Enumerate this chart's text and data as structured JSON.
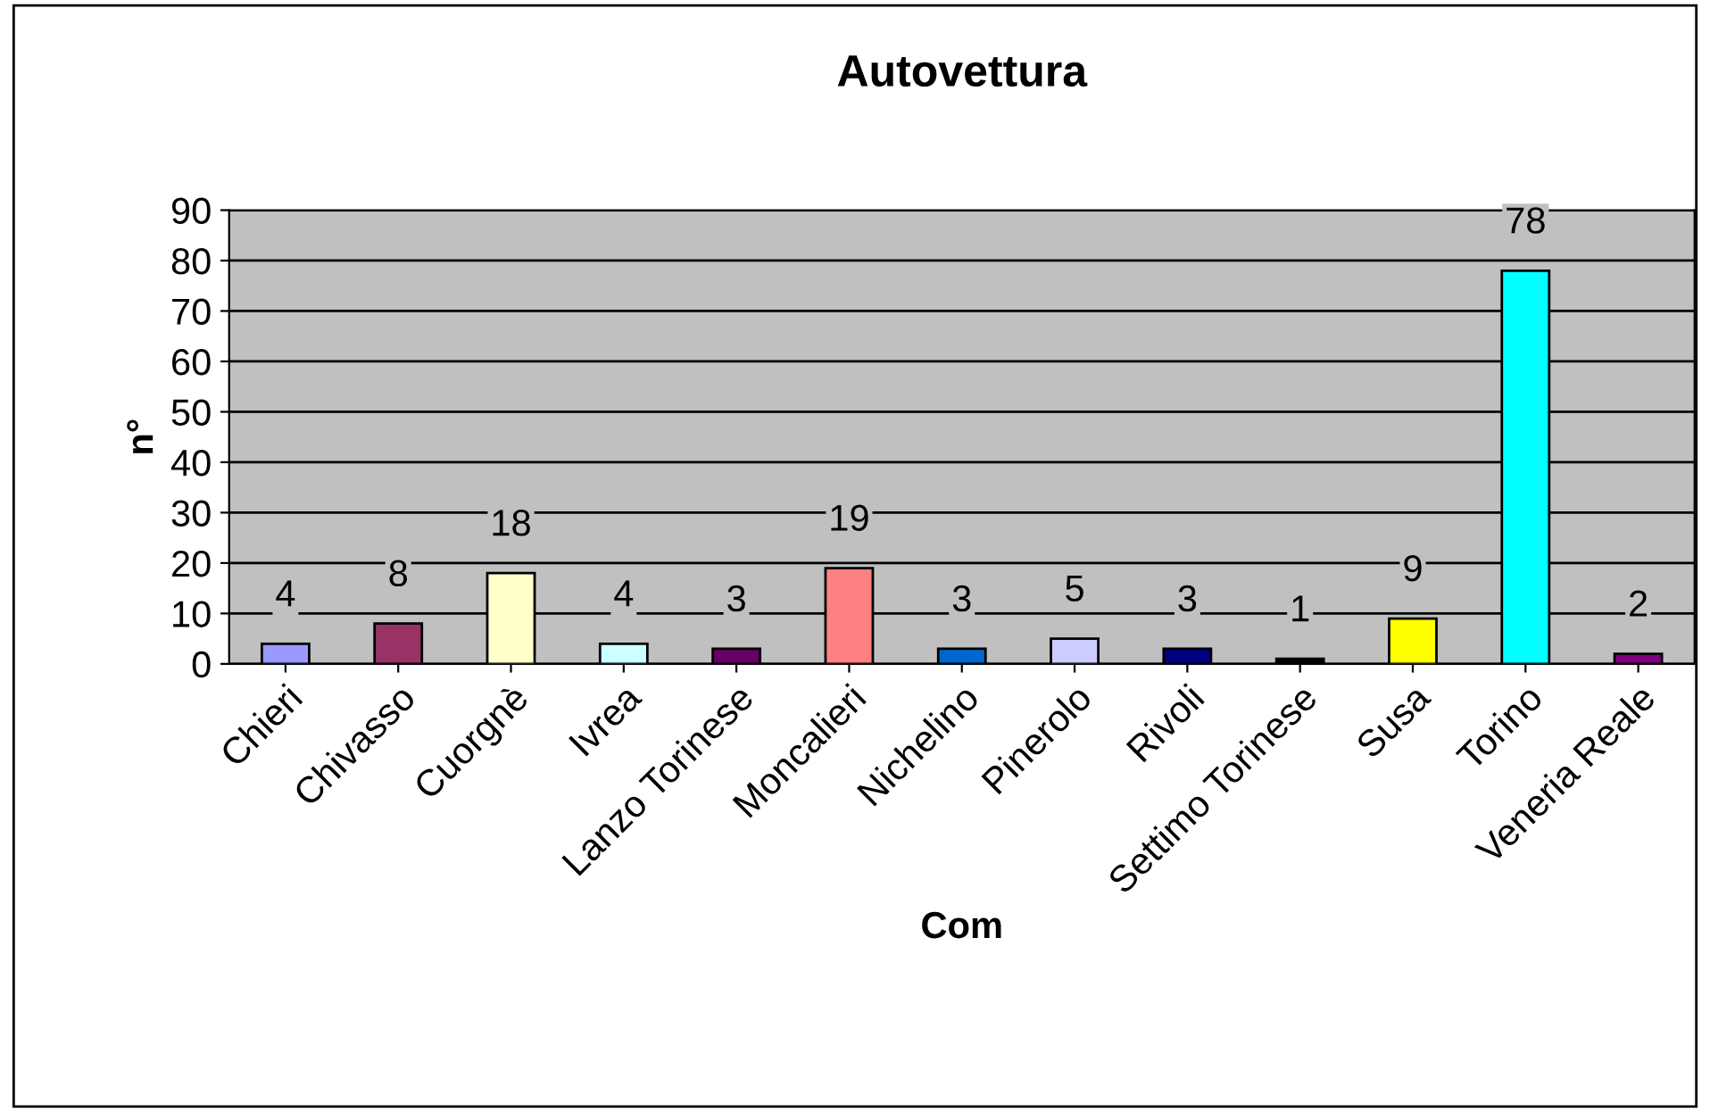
{
  "chart_data": {
    "type": "bar",
    "title": "Autovettura",
    "xlabel": "Com",
    "ylabel": "n°",
    "categories": [
      "Chieri",
      "Chivasso",
      "Cuorgnè",
      "Ivrea",
      "Lanzo Torinese",
      "Moncalieri",
      "Nichelino",
      "Pinerolo",
      "Rivoli",
      "Settimo Torinese",
      "Susa",
      "Torino",
      "Veneria Reale"
    ],
    "values": [
      4,
      8,
      18,
      4,
      3,
      19,
      3,
      5,
      3,
      1,
      9,
      78,
      2
    ],
    "colors": [
      "#9999ff",
      "#993366",
      "#ffffcc",
      "#ccffff",
      "#660066",
      "#ff8080",
      "#0066cc",
      "#ccccff",
      "#000080",
      "#000000",
      "#ffff00",
      "#00ffff",
      "#800080"
    ],
    "ylim": [
      0,
      90
    ],
    "yticks": [
      0,
      10,
      20,
      30,
      40,
      50,
      60,
      70,
      80,
      90
    ],
    "grid": "y",
    "data_labels": true,
    "legend": false
  }
}
